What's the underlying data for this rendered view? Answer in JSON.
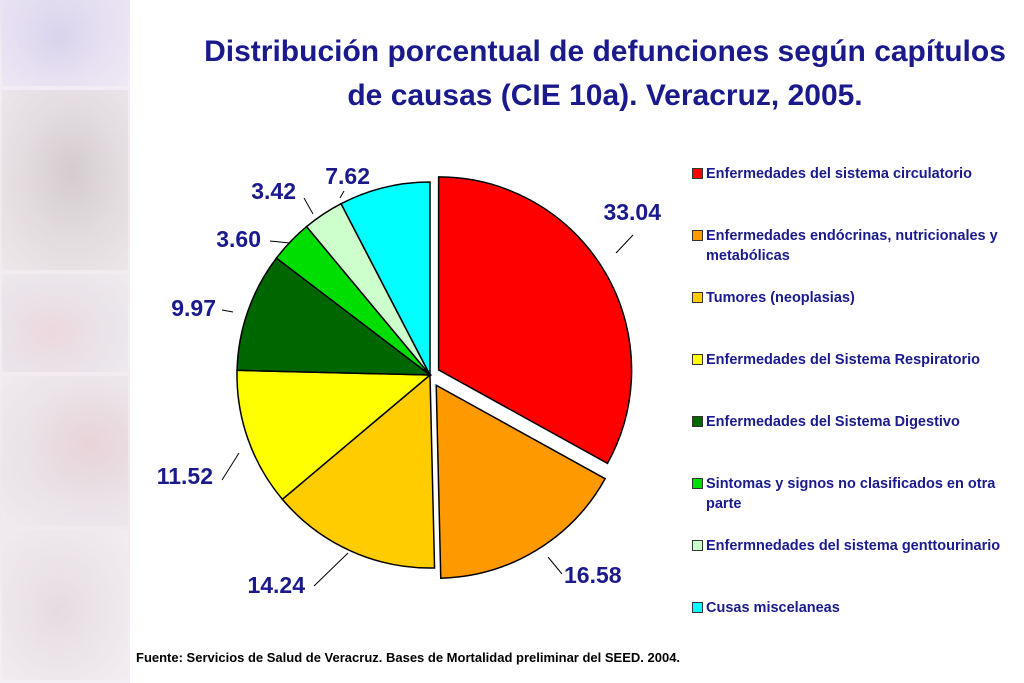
{
  "colors": {
    "title_text": "#1a1a8c",
    "outline": "#000000"
  },
  "title": "Distribución porcentual de defunciones según capítulos de causas (CIE 10a). Veracruz, 2005.",
  "source_note": "Fuente: Servicios de Salud de Veracruz. Bases de Mortalidad preliminar del SEED. 2004.",
  "chart_data": {
    "type": "pie",
    "title": "Distribución porcentual de defunciones según capítulos de causas (CIE 10a). Veracruz, 2005.",
    "unit": "%",
    "start_angle_deg": 0,
    "direction": "clockwise",
    "legend_position": "right",
    "exploded": [
      "Enfermedades del sistema circulatorio",
      "Enfermedades endócrinas, nutricionales y metabólicas"
    ],
    "slices": [
      {
        "label": "Enfermedades del sistema circulatorio",
        "value": 33.04,
        "display": "33.04",
        "color": "#ff0000"
      },
      {
        "label": "Enfermedades endócrinas, nutricionales y metabólicas",
        "value": 16.58,
        "display": "16.58",
        "color": "#ff9900"
      },
      {
        "label": "Tumores (neoplasias)",
        "value": 14.24,
        "display": "14.24",
        "color": "#ffcc00"
      },
      {
        "label": "Enfermedades del Sistema Respiratorio",
        "value": 11.52,
        "display": "11.52",
        "color": "#ffff00"
      },
      {
        "label": "Enfermedades del Sistema Digestivo",
        "value": 9.97,
        "display": "9.97",
        "color": "#006600"
      },
      {
        "label": "Sintomas y signos no clasificados en otra parte",
        "value": 3.6,
        "display": "3.60",
        "color": "#00dd00"
      },
      {
        "label": "Enfermnedades del sistema genttourinario",
        "value": 3.42,
        "display": "3.42",
        "color": "#ccffcc"
      },
      {
        "label": "Cusas miscelaneas",
        "value": 7.62,
        "display": "7.62",
        "color": "#00ffff"
      }
    ]
  }
}
